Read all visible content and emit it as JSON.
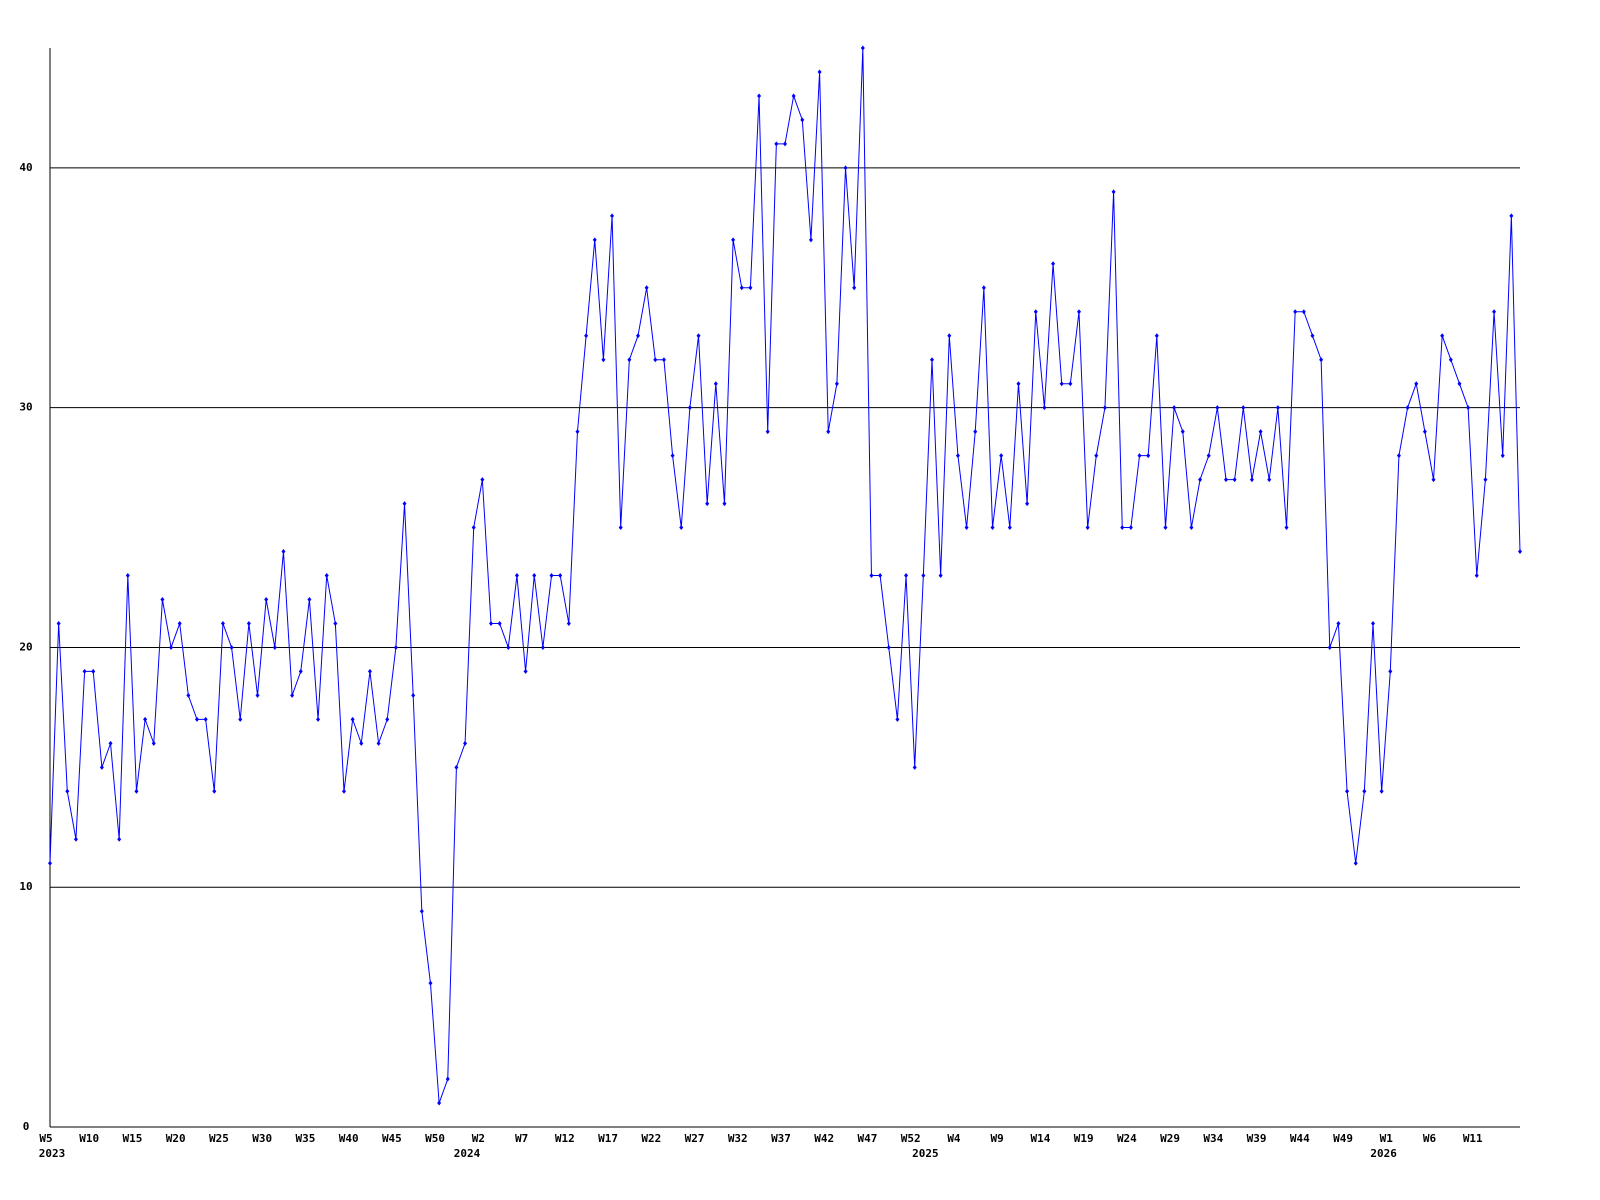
{
  "chart_data": {
    "type": "line",
    "categories": [
      "W5",
      null,
      null,
      null,
      null,
      "W10",
      null,
      null,
      null,
      null,
      "W15",
      null,
      null,
      null,
      null,
      "W20",
      null,
      null,
      null,
      null,
      "W25",
      null,
      null,
      null,
      null,
      "W30",
      null,
      null,
      null,
      null,
      "W35",
      null,
      null,
      null,
      null,
      "W40",
      null,
      null,
      null,
      null,
      "W45",
      null,
      null,
      null,
      null,
      "W50",
      null,
      null,
      null,
      null,
      "W2",
      null,
      null,
      null,
      null,
      "W7",
      null,
      null,
      null,
      null,
      "W12",
      null,
      null,
      null,
      null,
      "W17",
      null,
      null,
      null,
      null,
      "W22",
      null,
      null,
      null,
      null,
      "W27",
      null,
      null,
      null,
      null,
      "W32",
      null,
      null,
      null,
      null,
      "W37",
      null,
      null,
      null,
      null,
      "W42",
      null,
      null,
      null,
      null,
      "W47",
      null,
      null,
      null,
      null,
      "W52",
      null,
      null,
      null,
      null,
      "W4",
      null,
      null,
      null,
      null,
      "W9",
      null,
      null,
      null,
      null,
      "W14",
      null,
      null,
      null,
      null,
      "W19",
      null,
      null,
      null,
      null,
      "W24",
      null,
      null,
      null,
      null,
      "W29",
      null,
      null,
      null,
      null,
      "W34",
      null,
      null,
      null,
      null,
      "W39",
      null,
      null,
      null,
      null,
      "W44",
      null,
      null,
      null,
      null,
      "W49",
      null,
      null,
      null,
      null,
      "W1",
      null,
      null,
      null,
      null,
      "W6",
      null,
      null,
      null,
      null,
      "W11",
      null,
      null,
      null,
      null,
      null
    ],
    "year_labels": [
      {
        "text": "2023",
        "at": 0
      },
      {
        "text": "2024",
        "at": 48
      },
      {
        "text": "2025",
        "at": 101
      },
      {
        "text": "2026",
        "at": 154
      }
    ],
    "series": [
      {
        "color": "#0000ff",
        "values": [
          11,
          21,
          14,
          12,
          19,
          19,
          15,
          16,
          12,
          23,
          14,
          17,
          16,
          22,
          20,
          21,
          18,
          17,
          17,
          14,
          21,
          20,
          17,
          21,
          18,
          22,
          20,
          24,
          18,
          19,
          22,
          17,
          23,
          21,
          14,
          17,
          16,
          19,
          16,
          17,
          20,
          26,
          18,
          9,
          6,
          1,
          2,
          15,
          16,
          25,
          27,
          21,
          21,
          20,
          23,
          19,
          23,
          20,
          23,
          23,
          21,
          29,
          33,
          37,
          32,
          38,
          25,
          32,
          33,
          35,
          32,
          32,
          28,
          25,
          30,
          33,
          26,
          31,
          26,
          37,
          35,
          35,
          43,
          29,
          41,
          41,
          43,
          42,
          37,
          44,
          29,
          31,
          40,
          35,
          45,
          23,
          23,
          20,
          17,
          23,
          15,
          23,
          32,
          23,
          33,
          28,
          25,
          29,
          35,
          25,
          28,
          25,
          31,
          26,
          34,
          30,
          36,
          31,
          31,
          34,
          25,
          28,
          30,
          39,
          25,
          25,
          28,
          28,
          33,
          25,
          30,
          29,
          25,
          27,
          28,
          30,
          27,
          27,
          30,
          27,
          29,
          27,
          30,
          25,
          34,
          34,
          33,
          32,
          20,
          21,
          14,
          11,
          14,
          21,
          14,
          19,
          28,
          30,
          31,
          29,
          27,
          33,
          32,
          31,
          30,
          23,
          27,
          34,
          28,
          38,
          24
        ]
      }
    ],
    "ylim": [
      0,
      45
    ],
    "yticks": [
      0,
      10,
      20,
      30,
      40
    ],
    "grid": true
  }
}
